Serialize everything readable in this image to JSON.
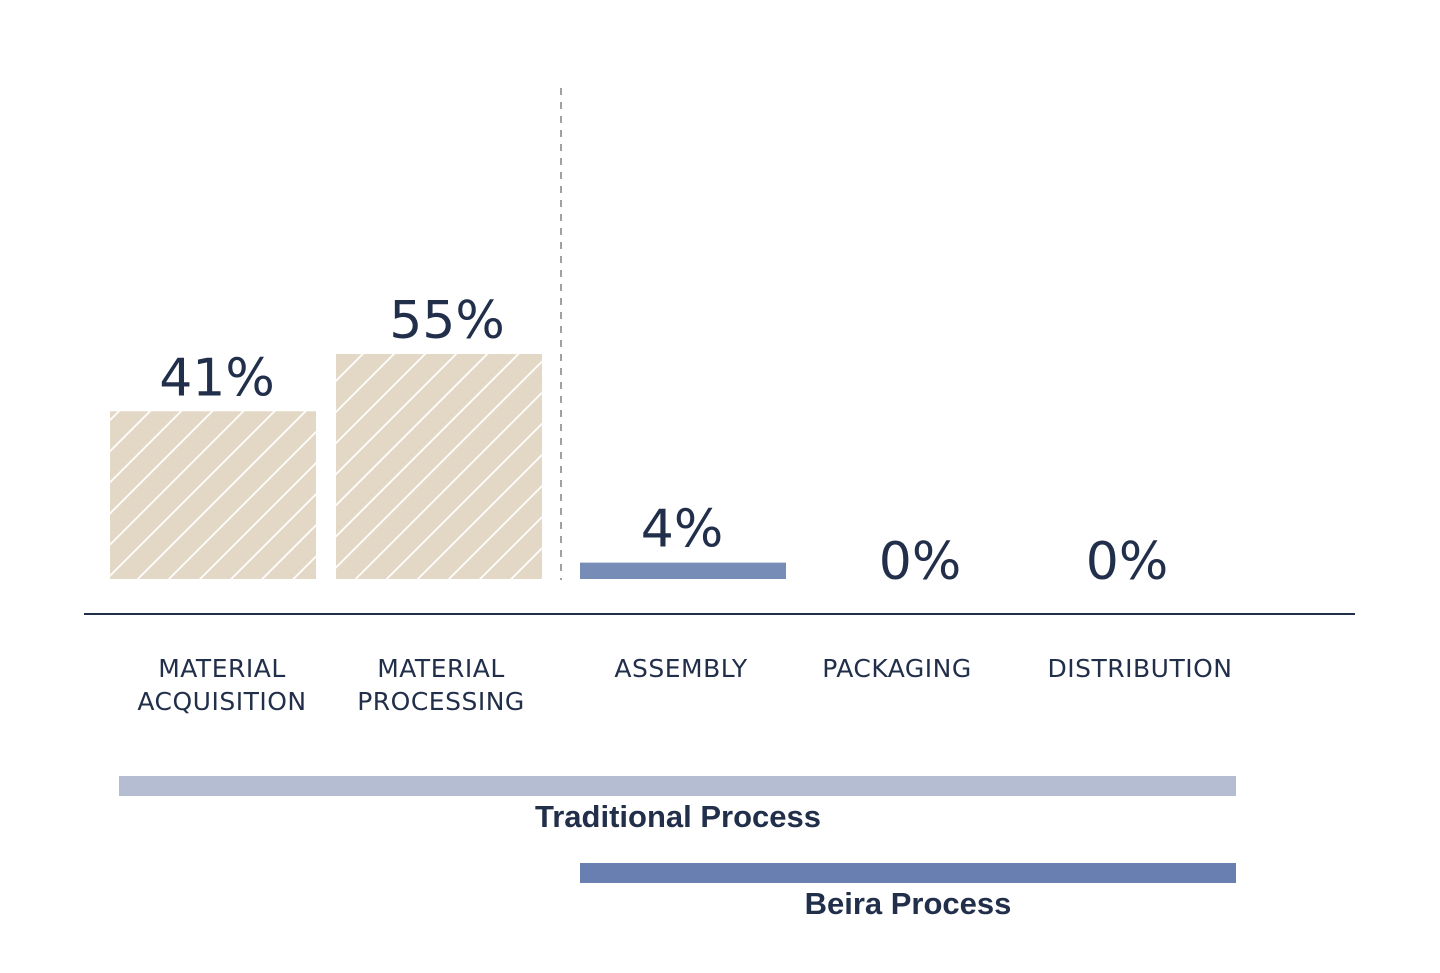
{
  "chart_data": {
    "type": "bar",
    "categories": [
      [
        "MATERIAL",
        "ACQUISITION"
      ],
      [
        "MATERIAL",
        "PROCESSING"
      ],
      [
        "ASSEMBLY"
      ],
      [
        "PACKAGING"
      ],
      [
        "DISTRIBUTION"
      ]
    ],
    "values": [
      41,
      55,
      4,
      0,
      0
    ],
    "value_labels": [
      "41%",
      "55%",
      "4%",
      "0%",
      "0%"
    ],
    "bar_styles": [
      "hatched",
      "hatched",
      "solid",
      "solid",
      "solid"
    ],
    "ylim": [
      0,
      55
    ],
    "grid": false,
    "colors": {
      "hatched_fill": "#e3d7c5",
      "hatch_stroke": "#ffffff",
      "solid_fill": "#778db8",
      "text": "#222f4a",
      "axis": "#222f4a",
      "divider": "#a0a0a0"
    },
    "processes": [
      {
        "label": "Traditional Process",
        "start_category": 0,
        "end_category": 4,
        "color": "#b4bdd1"
      },
      {
        "label": "Beira Process",
        "start_category": 2,
        "end_category": 4,
        "color": "#6a7fb1"
      }
    ]
  }
}
